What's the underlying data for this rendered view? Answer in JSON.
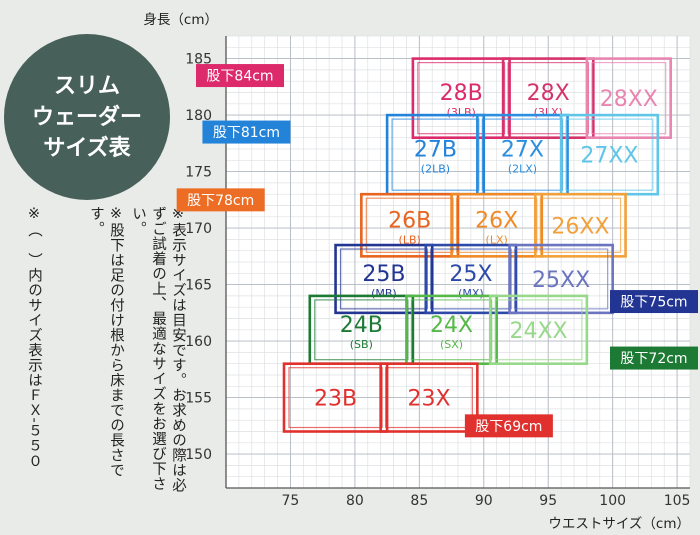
{
  "badge": {
    "lines": [
      "スリム",
      "ウェーダー",
      "サイズ表"
    ]
  },
  "notes": [
    "※表示サイズは目安です。お求めの際は必ずご試着の上、最適なサイズをお選び下さい。",
    "※股下は足の付け根から床までの長さです。",
    "※（　）内のサイズ表示はＦＸ-５５０"
  ],
  "chart_data": {
    "type": "table",
    "xlabel": "ウエストサイズ（cm）",
    "ylabel": "身長（cm）",
    "xlim": [
      70,
      106
    ],
    "ylim": [
      147,
      187
    ],
    "xticks": [
      75,
      80,
      85,
      90,
      95,
      100,
      105
    ],
    "yticks": [
      150,
      155,
      160,
      165,
      170,
      175,
      180,
      185
    ],
    "inseam_groups": [
      {
        "label": "股下84cm",
        "color": "#dc2a6a",
        "label_side": "left",
        "label_x": 74.5,
        "label_y": 183.5
      },
      {
        "label": "股下81cm",
        "color": "#2383d9",
        "label_side": "left",
        "label_x": 75,
        "label_y": 178.5
      },
      {
        "label": "股下78cm",
        "color": "#ee6d24",
        "label_side": "left",
        "label_x": 73,
        "label_y": 172.5
      },
      {
        "label": "股下75cm",
        "color": "#233592",
        "label_side": "right",
        "label_x": 105,
        "label_y": 163.5
      },
      {
        "label": "股下72cm",
        "color": "#1d7a34",
        "label_side": "right",
        "label_x": 104,
        "label_y": 158.5
      },
      {
        "label": "股下69cm",
        "color": "#e0312e",
        "label_side": "right",
        "label_x": 89,
        "label_y": 152.5
      }
    ],
    "sizes": [
      {
        "name": "28B",
        "sub": "(3LB)",
        "group": 0,
        "x": [
          84.5,
          92
        ],
        "y": [
          178,
          185
        ],
        "color": "#dc2a6a"
      },
      {
        "name": "28X",
        "sub": "(3LX)",
        "group": 0,
        "x": [
          91.5,
          98.5
        ],
        "y": [
          178,
          185
        ],
        "color": "#d6336b"
      },
      {
        "name": "28XX",
        "sub": "",
        "group": 0,
        "x": [
          98,
          104.5
        ],
        "y": [
          178,
          185
        ],
        "color": "#e885b1"
      },
      {
        "name": "27B",
        "sub": "(2LB)",
        "group": 1,
        "x": [
          82.5,
          90
        ],
        "y": [
          173,
          180
        ],
        "color": "#2383d9"
      },
      {
        "name": "27X",
        "sub": "(2LX)",
        "group": 1,
        "x": [
          89.5,
          96.5
        ],
        "y": [
          173,
          180
        ],
        "color": "#2a8fe0"
      },
      {
        "name": "27XX",
        "sub": "",
        "group": 1,
        "x": [
          96,
          103.5
        ],
        "y": [
          173,
          180
        ],
        "color": "#5fc6e8"
      },
      {
        "name": "26B",
        "sub": "(LB)",
        "group": 2,
        "x": [
          80.5,
          88
        ],
        "y": [
          167.5,
          173
        ],
        "color": "#e8641f"
      },
      {
        "name": "26X",
        "sub": "(LX)",
        "group": 2,
        "x": [
          87.5,
          94.5
        ],
        "y": [
          167.5,
          173
        ],
        "color": "#f08a27"
      },
      {
        "name": "26XX",
        "sub": "",
        "group": 2,
        "x": [
          94,
          101
        ],
        "y": [
          167.5,
          173
        ],
        "color": "#f2a13a"
      },
      {
        "name": "25B",
        "sub": "(MB)",
        "group": 3,
        "x": [
          78.5,
          86
        ],
        "y": [
          162.5,
          168.5
        ],
        "color": "#233592"
      },
      {
        "name": "25X",
        "sub": "(MX)",
        "group": 3,
        "x": [
          85.5,
          92.5
        ],
        "y": [
          162.5,
          168.5
        ],
        "color": "#2e4aa8"
      },
      {
        "name": "25XX",
        "sub": "",
        "group": 3,
        "x": [
          92,
          100
        ],
        "y": [
          162.5,
          168.5
        ],
        "color": "#6b74c0"
      },
      {
        "name": "24B",
        "sub": "(SB)",
        "group": 4,
        "x": [
          76.5,
          84.5
        ],
        "y": [
          158,
          164
        ],
        "color": "#1d7a34"
      },
      {
        "name": "24X",
        "sub": "(SX)",
        "group": 4,
        "x": [
          84,
          91
        ],
        "y": [
          158,
          164
        ],
        "color": "#56b848"
      },
      {
        "name": "24XX",
        "sub": "",
        "group": 4,
        "x": [
          90.5,
          98
        ],
        "y": [
          158,
          164
        ],
        "color": "#98d88a"
      },
      {
        "name": "23B",
        "sub": "",
        "group": 5,
        "x": [
          74.5,
          82.5
        ],
        "y": [
          152,
          158
        ],
        "color": "#e0312e"
      },
      {
        "name": "23X",
        "sub": "",
        "group": 5,
        "x": [
          82,
          89.5
        ],
        "y": [
          152,
          158
        ],
        "color": "#e0312e"
      }
    ]
  }
}
